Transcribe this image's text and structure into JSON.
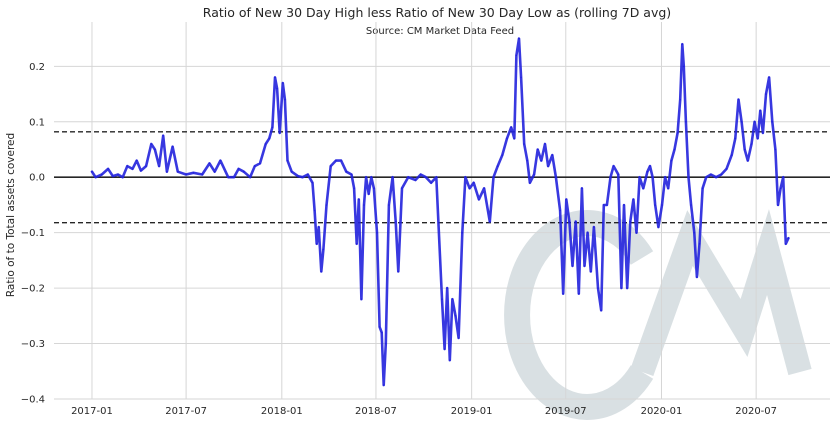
{
  "chart_data": {
    "type": "line",
    "title": "Ratio of New 30 Day High less Ratio of New 30 Day Low as (rolling 7D avg)",
    "subtitle": "Source: CM Market Data Feed",
    "xlabel": "",
    "ylabel": "Ratio of to Total assets covered",
    "x_ticks": [
      "2017-01",
      "2017-07",
      "2018-01",
      "2018-07",
      "2019-01",
      "2019-07",
      "2020-01",
      "2020-07"
    ],
    "y_ticks": [
      "0.2",
      "0.1",
      "0.0",
      "−0.1",
      "−0.2",
      "−0.3",
      "−0.4"
    ],
    "y_tick_values": [
      0.2,
      0.1,
      0.0,
      -0.1,
      -0.2,
      -0.3,
      -0.4
    ],
    "ylim": [
      -0.4,
      0.28
    ],
    "xlim": [
      "2016-10-20",
      "2020-11-20"
    ],
    "grid": true,
    "reference_lines": [
      {
        "y": 0.0,
        "style": "solid",
        "color": "#262626"
      },
      {
        "y": 0.082,
        "style": "dashed",
        "color": "#262626"
      },
      {
        "y": -0.082,
        "style": "dashed",
        "color": "#262626"
      }
    ],
    "series": [
      {
        "name": "rolling 7D avg",
        "color": "#2222dd",
        "points": [
          [
            "2017-01-01",
            0.01
          ],
          [
            "2017-01-08",
            0.0
          ],
          [
            "2017-01-20",
            0.005
          ],
          [
            "2017-02-01",
            0.015
          ],
          [
            "2017-02-10",
            0.002
          ],
          [
            "2017-02-20",
            0.005
          ],
          [
            "2017-03-01",
            0.0
          ],
          [
            "2017-03-10",
            0.02
          ],
          [
            "2017-03-20",
            0.015
          ],
          [
            "2017-03-28",
            0.03
          ],
          [
            "2017-04-05",
            0.012
          ],
          [
            "2017-04-15",
            0.02
          ],
          [
            "2017-04-25",
            0.06
          ],
          [
            "2017-05-02",
            0.05
          ],
          [
            "2017-05-10",
            0.02
          ],
          [
            "2017-05-18",
            0.075
          ],
          [
            "2017-05-25",
            0.01
          ],
          [
            "2017-06-05",
            0.055
          ],
          [
            "2017-06-15",
            0.01
          ],
          [
            "2017-07-01",
            0.005
          ],
          [
            "2017-07-15",
            0.008
          ],
          [
            "2017-08-01",
            0.005
          ],
          [
            "2017-08-15",
            0.025
          ],
          [
            "2017-08-25",
            0.01
          ],
          [
            "2017-09-05",
            0.03
          ],
          [
            "2017-09-20",
            0.0
          ],
          [
            "2017-10-01",
            0.0
          ],
          [
            "2017-10-10",
            0.015
          ],
          [
            "2017-10-20",
            0.01
          ],
          [
            "2017-11-01",
            0.0
          ],
          [
            "2017-11-10",
            0.02
          ],
          [
            "2017-11-20",
            0.025
          ],
          [
            "2017-12-01",
            0.06
          ],
          [
            "2017-12-08",
            0.07
          ],
          [
            "2017-12-14",
            0.09
          ],
          [
            "2017-12-19",
            0.18
          ],
          [
            "2017-12-23",
            0.16
          ],
          [
            "2017-12-28",
            0.08
          ],
          [
            "2018-01-03",
            0.17
          ],
          [
            "2018-01-07",
            0.14
          ],
          [
            "2018-01-12",
            0.03
          ],
          [
            "2018-01-20",
            0.01
          ],
          [
            "2018-02-01",
            0.002
          ],
          [
            "2018-02-10",
            0.0
          ],
          [
            "2018-02-20",
            0.005
          ],
          [
            "2018-03-01",
            -0.01
          ],
          [
            "2018-03-05",
            -0.06
          ],
          [
            "2018-03-09",
            -0.12
          ],
          [
            "2018-03-13",
            -0.09
          ],
          [
            "2018-03-18",
            -0.17
          ],
          [
            "2018-03-22",
            -0.13
          ],
          [
            "2018-03-28",
            -0.05
          ],
          [
            "2018-04-05",
            0.02
          ],
          [
            "2018-04-15",
            0.03
          ],
          [
            "2018-04-25",
            0.03
          ],
          [
            "2018-05-05",
            0.01
          ],
          [
            "2018-05-15",
            0.005
          ],
          [
            "2018-05-20",
            -0.02
          ],
          [
            "2018-05-25",
            -0.12
          ],
          [
            "2018-05-29",
            -0.04
          ],
          [
            "2018-06-03",
            -0.22
          ],
          [
            "2018-06-08",
            -0.05
          ],
          [
            "2018-06-12",
            0.0
          ],
          [
            "2018-06-17",
            -0.03
          ],
          [
            "2018-06-22",
            0.0
          ],
          [
            "2018-06-27",
            -0.02
          ],
          [
            "2018-07-03",
            -0.1
          ],
          [
            "2018-07-08",
            -0.27
          ],
          [
            "2018-07-12",
            -0.28
          ],
          [
            "2018-07-16",
            -0.375
          ],
          [
            "2018-07-20",
            -0.3
          ],
          [
            "2018-07-26",
            -0.05
          ],
          [
            "2018-08-02",
            0.0
          ],
          [
            "2018-08-08",
            -0.08
          ],
          [
            "2018-08-13",
            -0.17
          ],
          [
            "2018-08-20",
            -0.02
          ],
          [
            "2018-09-01",
            0.0
          ],
          [
            "2018-09-15",
            -0.005
          ],
          [
            "2018-09-25",
            0.005
          ],
          [
            "2018-10-05",
            0.0
          ],
          [
            "2018-10-15",
            -0.01
          ],
          [
            "2018-10-25",
            0.0
          ],
          [
            "2018-11-05",
            -0.22
          ],
          [
            "2018-11-10",
            -0.31
          ],
          [
            "2018-11-15",
            -0.2
          ],
          [
            "2018-11-20",
            -0.33
          ],
          [
            "2018-11-25",
            -0.22
          ],
          [
            "2018-12-01",
            -0.25
          ],
          [
            "2018-12-07",
            -0.29
          ],
          [
            "2018-12-14",
            -0.1
          ],
          [
            "2018-12-20",
            0.0
          ],
          [
            "2018-12-28",
            -0.02
          ],
          [
            "2019-01-05",
            -0.01
          ],
          [
            "2019-01-15",
            -0.04
          ],
          [
            "2019-01-25",
            -0.02
          ],
          [
            "2019-02-05",
            -0.08
          ],
          [
            "2019-02-12",
            0.0
          ],
          [
            "2019-02-20",
            0.02
          ],
          [
            "2019-03-01",
            0.04
          ],
          [
            "2019-03-10",
            0.07
          ],
          [
            "2019-03-18",
            0.09
          ],
          [
            "2019-03-24",
            0.07
          ],
          [
            "2019-03-28",
            0.22
          ],
          [
            "2019-04-02",
            0.25
          ],
          [
            "2019-04-06",
            0.18
          ],
          [
            "2019-04-12",
            0.06
          ],
          [
            "2019-04-18",
            0.03
          ],
          [
            "2019-04-23",
            -0.01
          ],
          [
            "2019-05-01",
            0.005
          ],
          [
            "2019-05-08",
            0.05
          ],
          [
            "2019-05-15",
            0.03
          ],
          [
            "2019-05-22",
            0.06
          ],
          [
            "2019-05-28",
            0.02
          ],
          [
            "2019-06-05",
            0.04
          ],
          [
            "2019-06-12",
            0.0
          ],
          [
            "2019-06-20",
            -0.06
          ],
          [
            "2019-06-26",
            -0.21
          ],
          [
            "2019-07-02",
            -0.04
          ],
          [
            "2019-07-08",
            -0.08
          ],
          [
            "2019-07-14",
            -0.16
          ],
          [
            "2019-07-20",
            -0.08
          ],
          [
            "2019-07-26",
            -0.21
          ],
          [
            "2019-08-01",
            -0.02
          ],
          [
            "2019-08-06",
            -0.16
          ],
          [
            "2019-08-12",
            -0.1
          ],
          [
            "2019-08-18",
            -0.17
          ],
          [
            "2019-08-24",
            -0.09
          ],
          [
            "2019-09-01",
            -0.2
          ],
          [
            "2019-09-07",
            -0.24
          ],
          [
            "2019-09-12",
            -0.05
          ],
          [
            "2019-09-18",
            -0.05
          ],
          [
            "2019-09-25",
            0.0
          ],
          [
            "2019-10-01",
            0.02
          ],
          [
            "2019-10-10",
            0.005
          ],
          [
            "2019-10-16",
            -0.2
          ],
          [
            "2019-10-21",
            -0.05
          ],
          [
            "2019-10-27",
            -0.2
          ],
          [
            "2019-11-02",
            -0.08
          ],
          [
            "2019-11-08",
            -0.04
          ],
          [
            "2019-11-14",
            -0.1
          ],
          [
            "2019-11-20",
            0.0
          ],
          [
            "2019-11-27",
            -0.02
          ],
          [
            "2019-12-05",
            0.01
          ],
          [
            "2019-12-10",
            0.02
          ],
          [
            "2019-12-15",
            0.0
          ],
          [
            "2019-12-20",
            -0.05
          ],
          [
            "2019-12-26",
            -0.09
          ],
          [
            "2020-01-02",
            -0.05
          ],
          [
            "2020-01-08",
            0.0
          ],
          [
            "2020-01-14",
            -0.02
          ],
          [
            "2020-01-20",
            0.03
          ],
          [
            "2020-01-26",
            0.05
          ],
          [
            "2020-02-01",
            0.08
          ],
          [
            "2020-02-06",
            0.14
          ],
          [
            "2020-02-10",
            0.24
          ],
          [
            "2020-02-13",
            0.2
          ],
          [
            "2020-02-17",
            0.1
          ],
          [
            "2020-02-22",
            0.0
          ],
          [
            "2020-02-27",
            -0.05
          ],
          [
            "2020-03-04",
            -0.1
          ],
          [
            "2020-03-09",
            -0.18
          ],
          [
            "2020-03-14",
            -0.12
          ],
          [
            "2020-03-20",
            -0.02
          ],
          [
            "2020-03-27",
            0.0
          ],
          [
            "2020-04-05",
            0.005
          ],
          [
            "2020-04-15",
            0.0
          ],
          [
            "2020-04-25",
            0.005
          ],
          [
            "2020-05-05",
            0.015
          ],
          [
            "2020-05-15",
            0.04
          ],
          [
            "2020-05-22",
            0.07
          ],
          [
            "2020-05-28",
            0.14
          ],
          [
            "2020-06-03",
            0.1
          ],
          [
            "2020-06-09",
            0.05
          ],
          [
            "2020-06-15",
            0.03
          ],
          [
            "2020-06-22",
            0.06
          ],
          [
            "2020-06-28",
            0.1
          ],
          [
            "2020-07-04",
            0.07
          ],
          [
            "2020-07-09",
            0.12
          ],
          [
            "2020-07-14",
            0.08
          ],
          [
            "2020-07-20",
            0.15
          ],
          [
            "2020-07-26",
            0.18
          ],
          [
            "2020-08-01",
            0.1
          ],
          [
            "2020-08-07",
            0.05
          ],
          [
            "2020-08-12",
            -0.05
          ],
          [
            "2020-08-17",
            -0.02
          ],
          [
            "2020-08-22",
            0.0
          ],
          [
            "2020-08-27",
            -0.12
          ],
          [
            "2020-09-01",
            -0.11
          ]
        ]
      }
    ],
    "watermark": "CM"
  }
}
